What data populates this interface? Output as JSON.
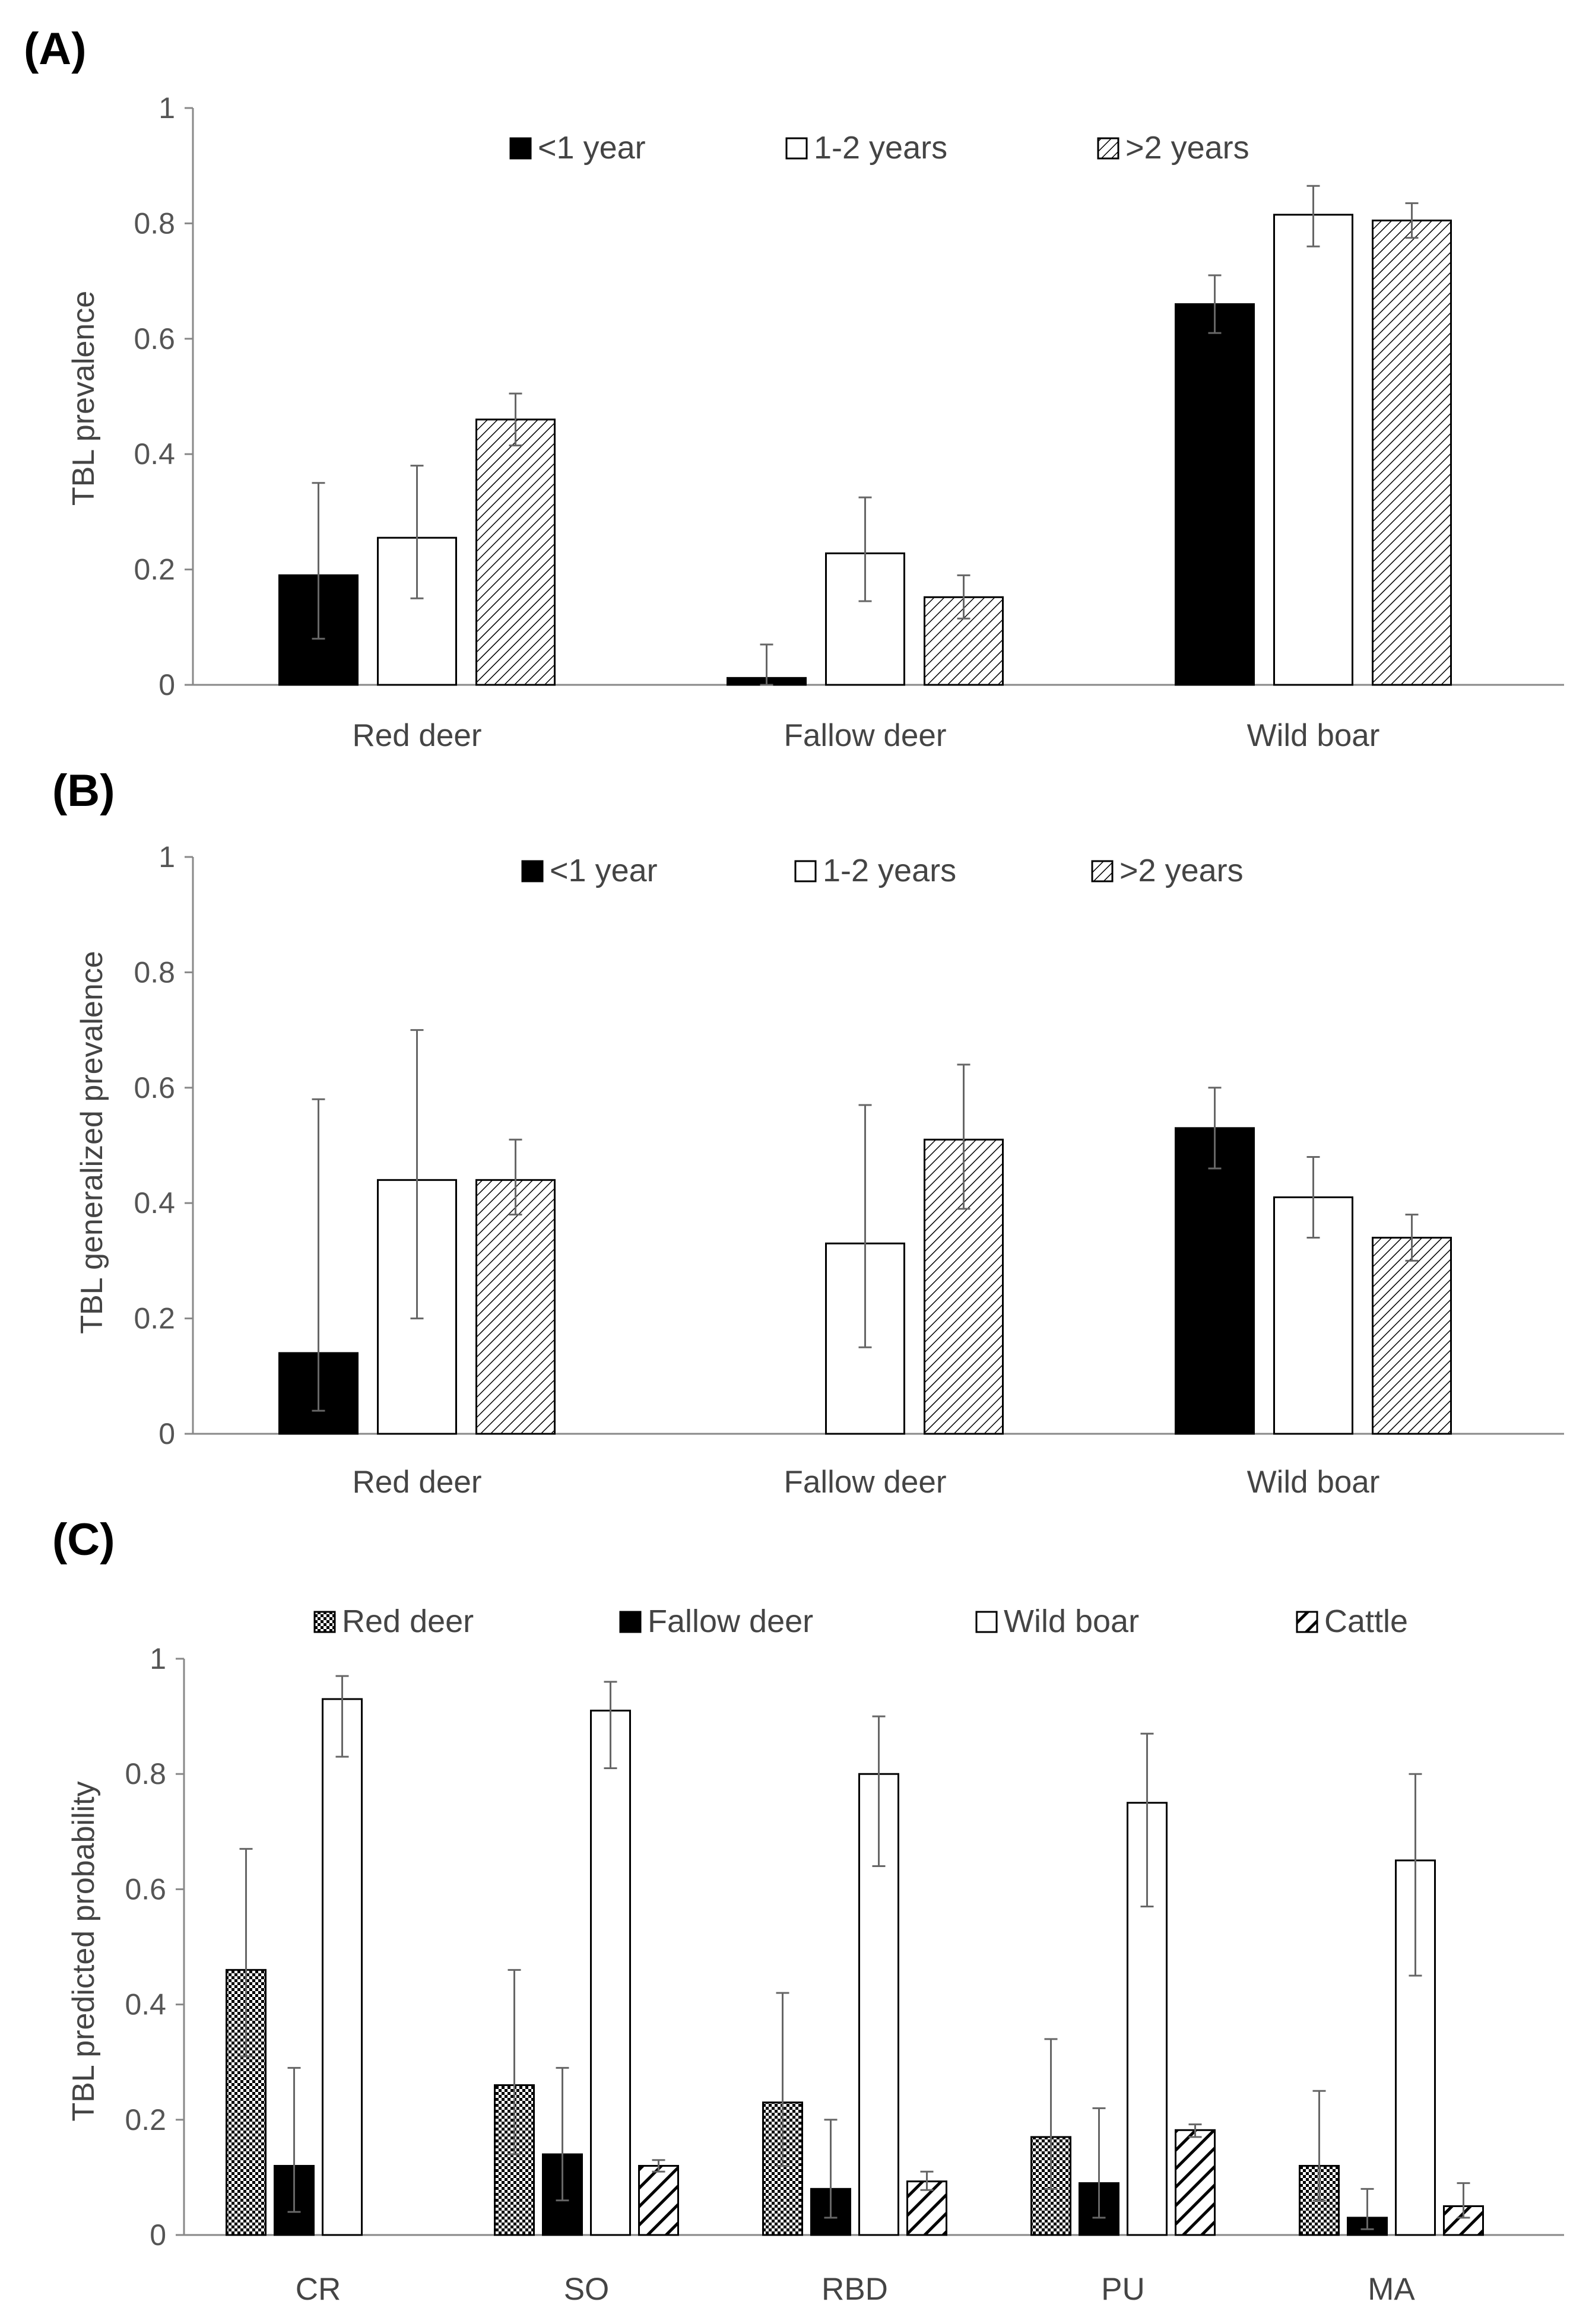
{
  "colors": {
    "black": "#000000",
    "white": "#ffffff",
    "hatch": "#000000"
  },
  "chart_data": [
    {
      "type": "bar",
      "panel_label": "(A)",
      "title": "",
      "ylabel": "TBL prevalence",
      "xlabel": "",
      "ylim": [
        0,
        1
      ],
      "yticks": [
        0,
        0.2,
        0.4,
        0.6,
        0.8,
        1
      ],
      "ytick_labels": [
        "0",
        "0.2",
        "0.4",
        "0.6",
        "0.8",
        "1"
      ],
      "categories": [
        "Red deer",
        "Fallow deer",
        "Wild boar"
      ],
      "legend_position": "top",
      "series": [
        {
          "name": "<1 year",
          "fill": "black",
          "values": [
            0.19,
            0.012,
            0.66
          ],
          "err_low": [
            0.08,
            0.0,
            0.61
          ],
          "err_high": [
            0.35,
            0.07,
            0.71
          ]
        },
        {
          "name": "1-2 years",
          "fill": "white",
          "values": [
            0.255,
            0.228,
            0.815
          ],
          "err_low": [
            0.15,
            0.145,
            0.76
          ],
          "err_high": [
            0.38,
            0.325,
            0.865
          ]
        },
        {
          "name": ">2 years",
          "fill": "diag",
          "values": [
            0.46,
            0.152,
            0.805
          ],
          "err_low": [
            0.415,
            0.115,
            0.775
          ],
          "err_high": [
            0.505,
            0.19,
            0.835
          ]
        }
      ]
    },
    {
      "type": "bar",
      "panel_label": "(B)",
      "title": "",
      "ylabel": "TBL generalized prevalence",
      "xlabel": "",
      "ylim": [
        0,
        1
      ],
      "yticks": [
        0,
        0.2,
        0.4,
        0.6,
        0.8,
        1
      ],
      "ytick_labels": [
        "0",
        "0.2",
        "0.4",
        "0.6",
        "0.8",
        "1"
      ],
      "categories": [
        "Red deer",
        "Fallow deer",
        "Wild boar"
      ],
      "legend_position": "top",
      "series": [
        {
          "name": "<1 year",
          "fill": "black",
          "values": [
            0.14,
            null,
            0.53
          ],
          "err_low": [
            0.04,
            null,
            0.46
          ],
          "err_high": [
            0.58,
            null,
            0.6
          ]
        },
        {
          "name": "1-2 years",
          "fill": "white",
          "values": [
            0.44,
            0.33,
            0.41
          ],
          "err_low": [
            0.2,
            0.15,
            0.34
          ],
          "err_high": [
            0.7,
            0.57,
            0.48
          ]
        },
        {
          "name": ">2 years",
          "fill": "diag",
          "values": [
            0.44,
            0.51,
            0.34
          ],
          "err_low": [
            0.38,
            0.39,
            0.3
          ],
          "err_high": [
            0.51,
            0.64,
            0.38
          ]
        }
      ]
    },
    {
      "type": "bar",
      "panel_label": "(C)",
      "title": "",
      "ylabel": "TBL predicted probability",
      "xlabel": "",
      "ylim": [
        0,
        1
      ],
      "yticks": [
        0,
        0.2,
        0.4,
        0.6,
        0.8,
        1
      ],
      "ytick_labels": [
        "0",
        "0.2",
        "0.4",
        "0.6",
        "0.8",
        "1"
      ],
      "categories": [
        "CR",
        "SO",
        "RBD",
        "PU",
        "MA"
      ],
      "legend_position": "top",
      "series": [
        {
          "name": "Red deer",
          "fill": "check",
          "values": [
            0.46,
            0.26,
            0.23,
            0.17,
            0.12
          ],
          "err_low": [
            0.31,
            0.14,
            0.12,
            0.08,
            0.06
          ],
          "err_high": [
            0.67,
            0.46,
            0.42,
            0.34,
            0.25
          ]
        },
        {
          "name": "Fallow deer",
          "fill": "black",
          "values": [
            0.12,
            0.14,
            0.08,
            0.09,
            0.03
          ],
          "err_low": [
            0.04,
            0.06,
            0.03,
            0.03,
            0.01
          ],
          "err_high": [
            0.29,
            0.29,
            0.2,
            0.22,
            0.08
          ]
        },
        {
          "name": "Wild boar",
          "fill": "white",
          "values": [
            0.93,
            0.91,
            0.8,
            0.75,
            0.65
          ],
          "err_low": [
            0.83,
            0.81,
            0.64,
            0.57,
            0.45
          ],
          "err_high": [
            0.97,
            0.96,
            0.9,
            0.87,
            0.8
          ]
        },
        {
          "name": "Cattle",
          "fill": "bold-diag",
          "values": [
            null,
            0.12,
            0.093,
            0.182,
            0.05
          ],
          "err_low": [
            null,
            0.11,
            0.078,
            0.17,
            0.03
          ],
          "err_high": [
            null,
            0.13,
            0.11,
            0.192,
            0.09
          ]
        }
      ]
    }
  ]
}
